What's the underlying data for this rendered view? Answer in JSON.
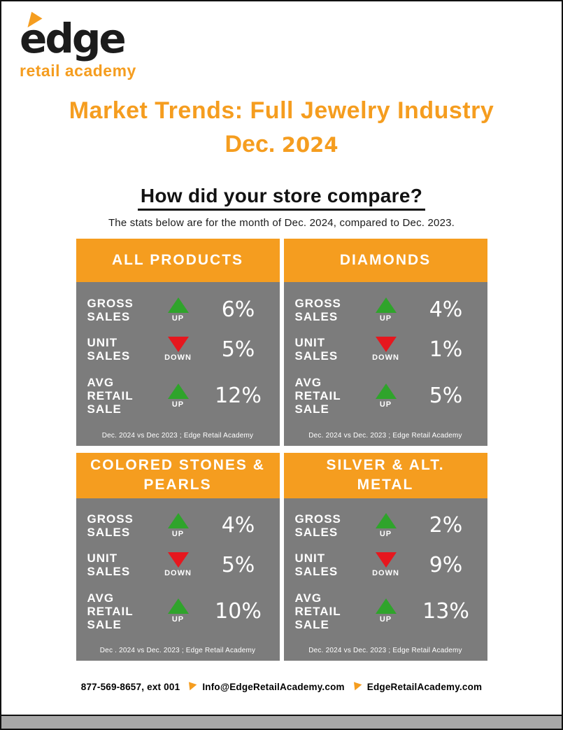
{
  "colors": {
    "orange": "#F59D1F",
    "card-gray": "#7C7C7C",
    "green": "#2FA42B",
    "red": "#E6171E",
    "ink": "#141414"
  },
  "logo": {
    "brand": "edge",
    "tagline": "retail academy"
  },
  "title": {
    "line1": "Market Trends: Full Jewelry Industry",
    "line2_prefix": "Dec.",
    "line2_year": "2024"
  },
  "compare": {
    "heading": "How did your store compare?",
    "subtext": "The stats below are for the month of Dec. 2024, compared to Dec. 2023."
  },
  "cards": [
    {
      "title": "ALL PRODUCTS",
      "rows": [
        {
          "label": "GROSS\nSALES",
          "direction": "UP",
          "value": "6%"
        },
        {
          "label": "UNIT\nSALES",
          "direction": "DOWN",
          "value": "5%"
        },
        {
          "label": "AVG\nRETAIL\nSALE",
          "direction": "UP",
          "value": "12%"
        }
      ],
      "footnote": "Dec. 2024 vs Dec 2023 ; Edge Retail Academy"
    },
    {
      "title": "DIAMONDS",
      "rows": [
        {
          "label": "GROSS\nSALES",
          "direction": "UP",
          "value": "4%"
        },
        {
          "label": "UNIT\nSALES",
          "direction": "DOWN",
          "value": "1%"
        },
        {
          "label": "AVG\nRETAIL\nSALE",
          "direction": "UP",
          "value": "5%"
        }
      ],
      "footnote": "Dec. 2024 vs Dec. 2023 ; Edge Retail Academy"
    },
    {
      "title": "COLORED STONES & PEARLS",
      "rows": [
        {
          "label": "GROSS\nSALES",
          "direction": "UP",
          "value": "4%"
        },
        {
          "label": "UNIT\nSALES",
          "direction": "DOWN",
          "value": "5%"
        },
        {
          "label": "AVG\nRETAIL\nSALE",
          "direction": "UP",
          "value": "10%"
        }
      ],
      "footnote": "Dec . 2024 vs Dec. 2023 ; Edge Retail Academy"
    },
    {
      "title": "SILVER & ALT. METAL",
      "rows": [
        {
          "label": "GROSS\nSALES",
          "direction": "UP",
          "value": "2%"
        },
        {
          "label": "UNIT\nSALES",
          "direction": "DOWN",
          "value": "9%"
        },
        {
          "label": "AVG\nRETAIL\nSALE",
          "direction": "UP",
          "value": "13%"
        }
      ],
      "footnote": "Dec. 2024 vs Dec. 2023 ; Edge Retail Academy"
    }
  ],
  "footer": {
    "phone": "877-569-8657, ext 001",
    "email": "Info@EdgeRetailAcademy.com",
    "website": "EdgeRetailAcademy.com"
  }
}
